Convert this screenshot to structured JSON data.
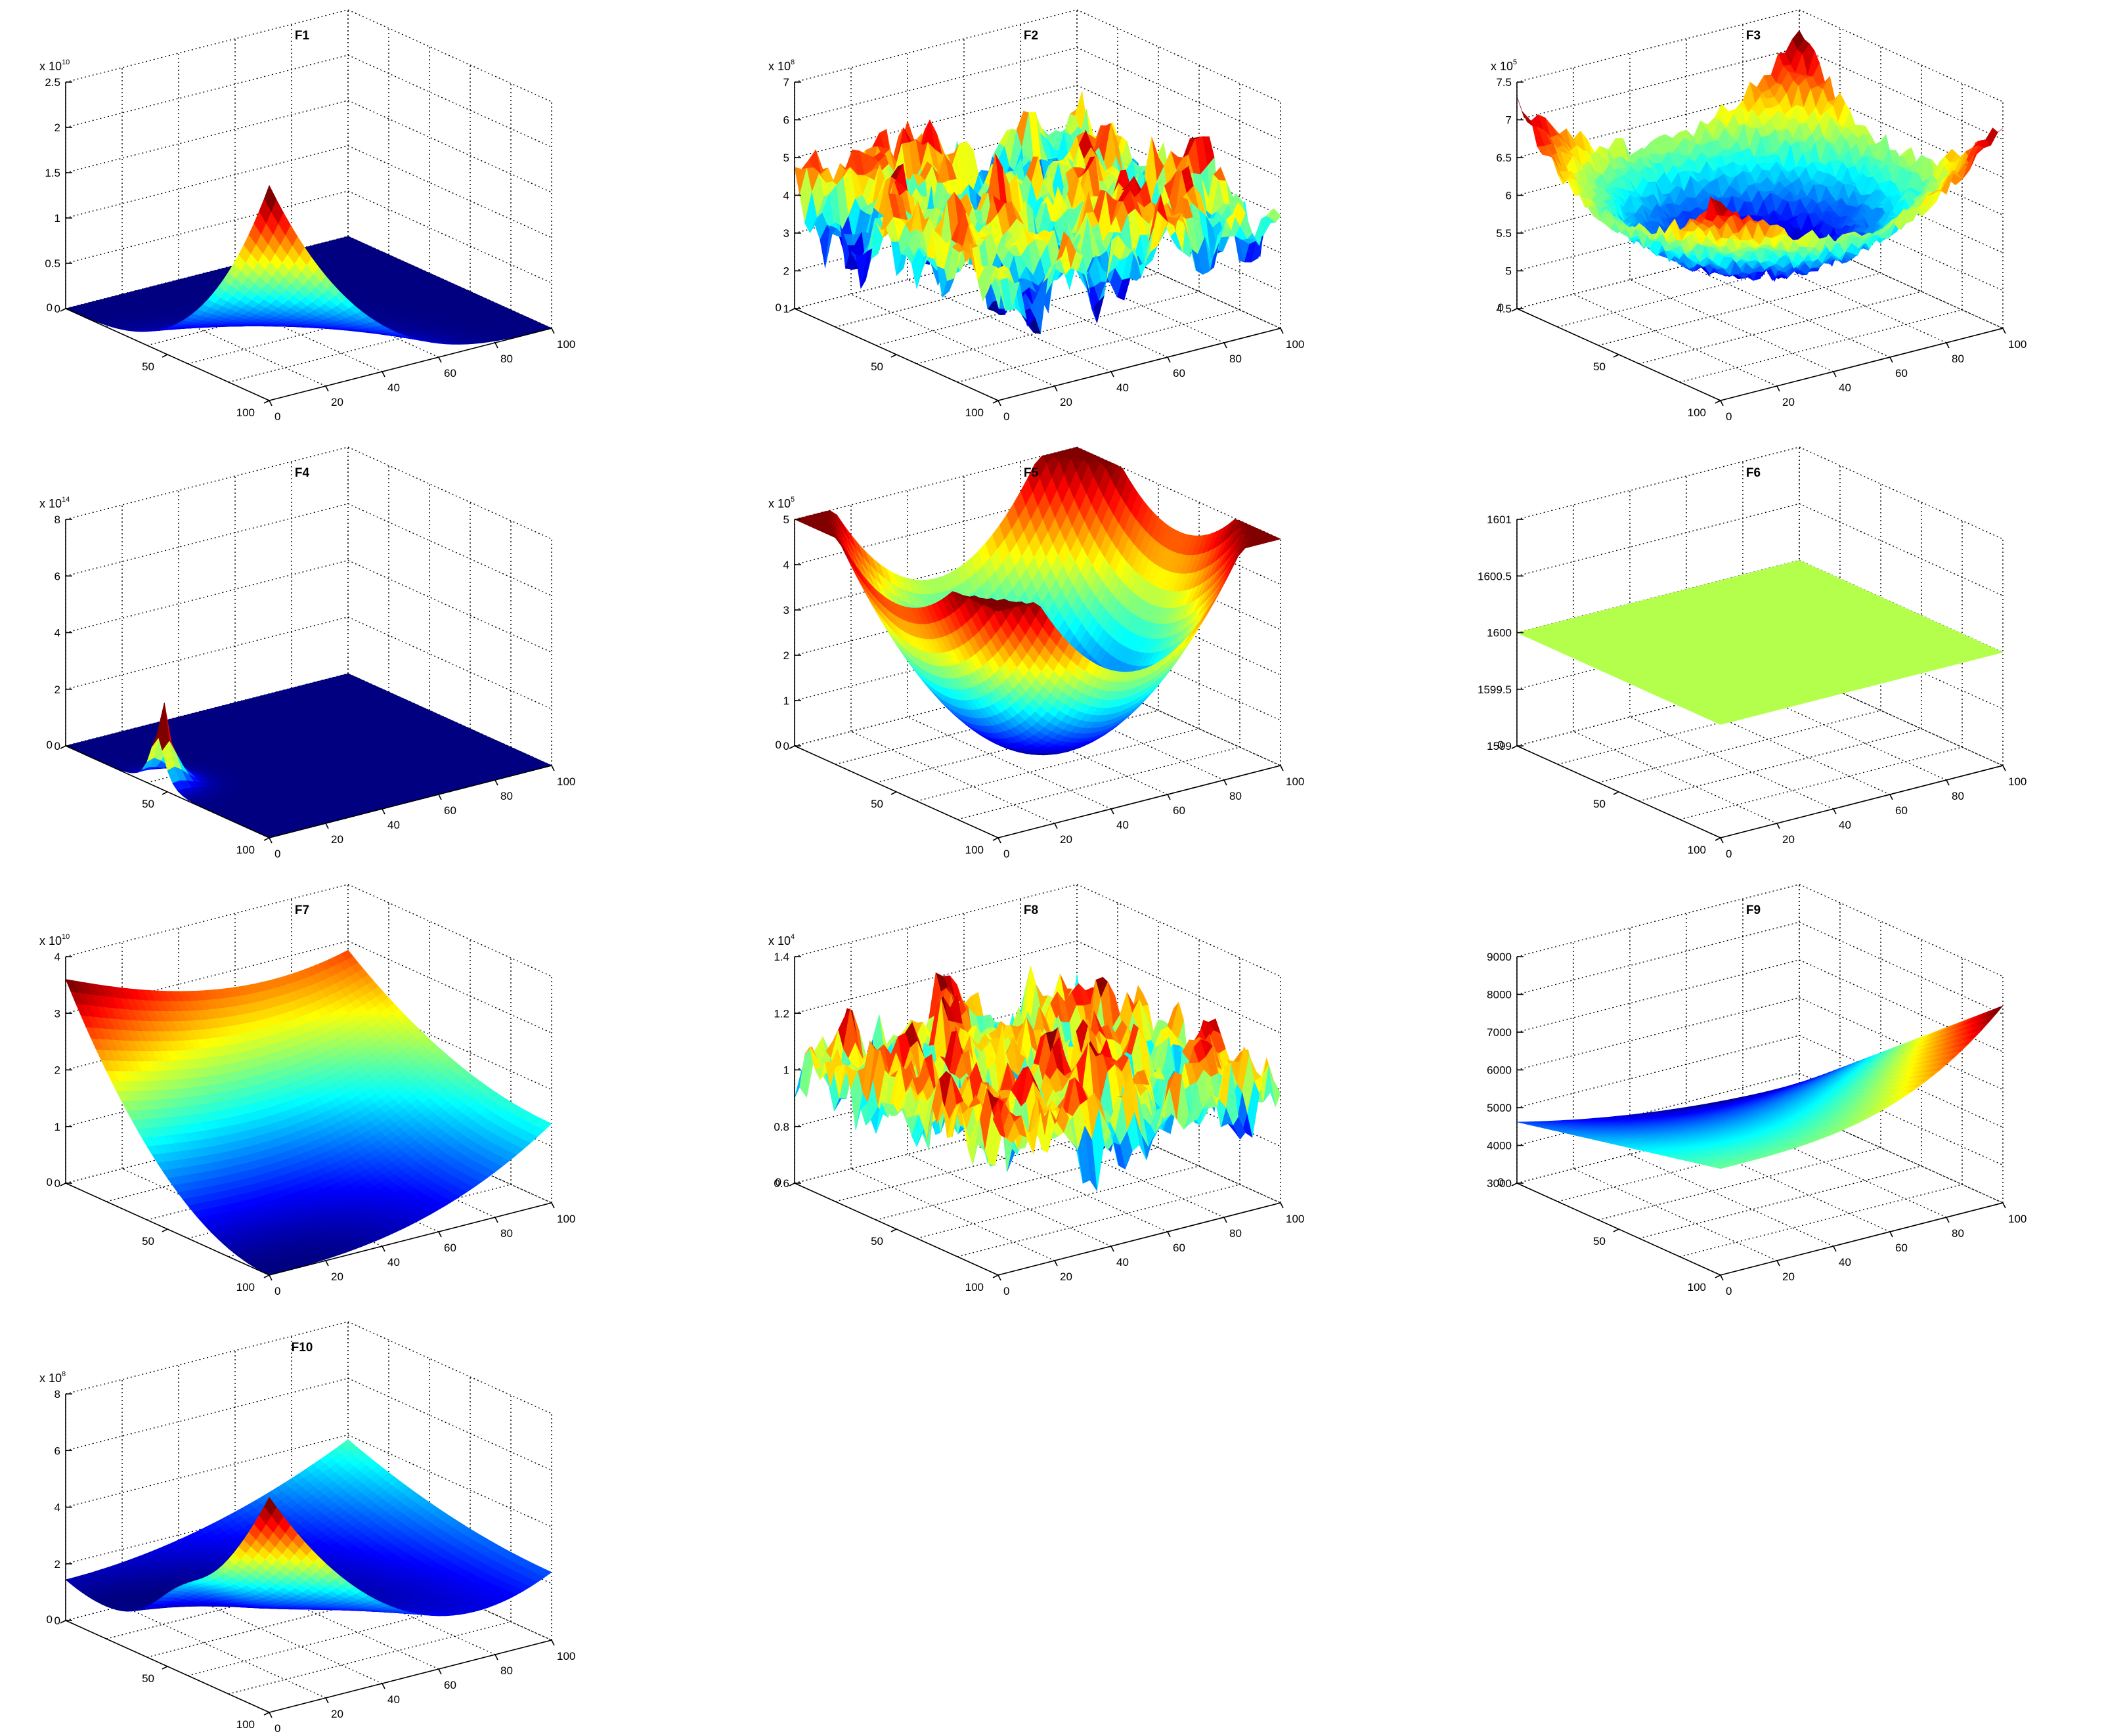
{
  "chart_data": [
    {
      "type": "surface",
      "title": "F1",
      "exponent": "x 10^10",
      "z_ticks": [
        "0",
        "0.5",
        "1",
        "1.5",
        "2",
        "2.5"
      ],
      "x_ticks": [
        "0",
        "20",
        "40",
        "60",
        "80",
        "100"
      ],
      "y_ticks": [
        "0",
        "50",
        "100"
      ],
      "shape": "corner_peak",
      "colormap": "jet"
    },
    {
      "type": "surface",
      "title": "F2",
      "exponent": "x 10^8",
      "z_ticks": [
        "1",
        "2",
        "3",
        "4",
        "5",
        "6",
        "7"
      ],
      "x_ticks": [
        "0",
        "20",
        "40",
        "60",
        "80",
        "100"
      ],
      "y_ticks": [
        "0",
        "50",
        "100"
      ],
      "shape": "rugged",
      "colormap": "jet"
    },
    {
      "type": "surface",
      "title": "F3",
      "exponent": "x 10^5",
      "z_ticks": [
        "4.5",
        "5",
        "5.5",
        "6",
        "6.5",
        "7",
        "7.5"
      ],
      "x_ticks": [
        "0",
        "20",
        "40",
        "60",
        "80",
        "100"
      ],
      "y_ticks": [
        "0",
        "50",
        "100"
      ],
      "shape": "noisy_bowl",
      "colormap": "jet"
    },
    {
      "type": "surface",
      "title": "F4",
      "exponent": "x 10^14",
      "z_ticks": [
        "0",
        "2",
        "4",
        "6",
        "8"
      ],
      "x_ticks": [
        "0",
        "20",
        "40",
        "60",
        "80",
        "100"
      ],
      "y_ticks": [
        "0",
        "50",
        "100"
      ],
      "shape": "spike",
      "colormap": "jet"
    },
    {
      "type": "surface",
      "title": "F5",
      "exponent": "x 10^5",
      "z_ticks": [
        "0",
        "1",
        "2",
        "3",
        "4",
        "5"
      ],
      "x_ticks": [
        "0",
        "20",
        "40",
        "60",
        "80",
        "100"
      ],
      "y_ticks": [
        "0",
        "50",
        "100"
      ],
      "shape": "saddle",
      "colormap": "jet"
    },
    {
      "type": "surface",
      "title": "F6",
      "exponent": "",
      "z_ticks": [
        "1599",
        "1599.5",
        "1600",
        "1600.5",
        "1601"
      ],
      "x_ticks": [
        "0",
        "20",
        "40",
        "60",
        "80",
        "100"
      ],
      "y_ticks": [
        "0",
        "50",
        "100"
      ],
      "shape": "flat",
      "colormap": "jet"
    },
    {
      "type": "surface",
      "title": "F7",
      "exponent": "x 10^10",
      "z_ticks": [
        "0",
        "1",
        "2",
        "3",
        "4"
      ],
      "x_ticks": [
        "0",
        "20",
        "40",
        "60",
        "80",
        "100"
      ],
      "y_ticks": [
        "0",
        "50",
        "100"
      ],
      "shape": "bowl_tilted",
      "colormap": "jet"
    },
    {
      "type": "surface",
      "title": "F8",
      "exponent": "x 10^4",
      "z_ticks": [
        "0.6",
        "0.8",
        "1",
        "1.2",
        "1.4"
      ],
      "x_ticks": [
        "0",
        "20",
        "40",
        "60",
        "80",
        "100"
      ],
      "y_ticks": [
        "0",
        "50",
        "100"
      ],
      "shape": "rugged2",
      "colormap": "jet"
    },
    {
      "type": "surface",
      "title": "F9",
      "exponent": "",
      "z_ticks": [
        "3000",
        "4000",
        "5000",
        "6000",
        "7000",
        "8000",
        "9000"
      ],
      "x_ticks": [
        "0",
        "20",
        "40",
        "60",
        "80",
        "100"
      ],
      "y_ticks": [
        "0",
        "50",
        "100"
      ],
      "shape": "ramp",
      "colormap": "jet"
    },
    {
      "type": "surface",
      "title": "F10",
      "exponent": "x 10^8",
      "z_ticks": [
        "0",
        "2",
        "4",
        "6",
        "8"
      ],
      "x_ticks": [
        "0",
        "20",
        "40",
        "60",
        "80",
        "100"
      ],
      "y_ticks": [
        "0",
        "50",
        "100"
      ],
      "shape": "bowl_peak",
      "colormap": "jet"
    }
  ]
}
